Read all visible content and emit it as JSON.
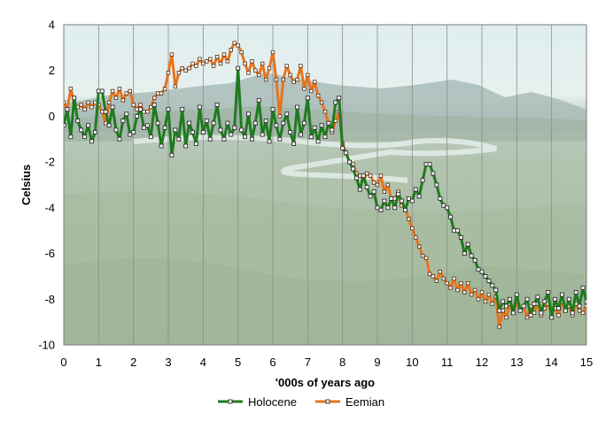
{
  "chart_data": {
    "type": "line",
    "title": "",
    "xlabel": "'000s of years ago",
    "ylabel": "Celsius",
    "xlim": [
      0,
      15
    ],
    "ylim": [
      -10,
      4
    ],
    "xticks": [
      "0",
      "1",
      "2",
      "3",
      "4",
      "5",
      "6",
      "7",
      "8",
      "9",
      "10",
      "11",
      "12",
      "13",
      "14",
      "15"
    ],
    "yticks": [
      "4",
      "2",
      "0",
      "-2",
      "-4",
      "-6",
      "-8",
      "-10"
    ],
    "grid": "vertical",
    "legend": "bottom",
    "background": "photograph of a forested landscape with a winding river and mountains",
    "series": [
      {
        "name": "Holocene",
        "color": "#1f7a1f",
        "x": [
          0,
          0.1,
          0.2,
          0.3,
          0.4,
          0.5,
          0.6,
          0.7,
          0.8,
          0.9,
          1.0,
          1.1,
          1.2,
          1.3,
          1.4,
          1.5,
          1.6,
          1.7,
          1.8,
          1.9,
          2.0,
          2.1,
          2.2,
          2.3,
          2.4,
          2.5,
          2.6,
          2.7,
          2.8,
          2.9,
          3.0,
          3.1,
          3.2,
          3.3,
          3.4,
          3.5,
          3.6,
          3.7,
          3.8,
          3.9,
          4.0,
          4.1,
          4.2,
          4.3,
          4.4,
          4.5,
          4.6,
          4.7,
          4.8,
          4.9,
          5.0,
          5.1,
          5.2,
          5.3,
          5.4,
          5.5,
          5.6,
          5.7,
          5.8,
          5.9,
          6.0,
          6.1,
          6.2,
          6.3,
          6.4,
          6.5,
          6.6,
          6.7,
          6.8,
          6.9,
          7.0,
          7.1,
          7.2,
          7.3,
          7.4,
          7.5,
          7.6,
          7.7,
          7.8,
          7.9,
          8.0,
          8.1,
          8.2,
          8.3,
          8.4,
          8.5,
          8.6,
          8.7,
          8.8,
          8.9,
          9.0,
          9.1,
          9.2,
          9.3,
          9.4,
          9.5,
          9.6,
          9.7,
          9.8,
          9.9,
          10.0,
          10.1,
          10.2,
          10.3,
          10.4,
          10.5,
          10.6,
          10.7,
          10.8,
          10.9,
          11.0,
          11.1,
          11.2,
          11.3,
          11.4,
          11.5,
          11.6,
          11.7,
          11.8,
          11.9,
          12.0,
          12.1,
          12.2,
          12.3,
          12.4,
          12.5,
          12.6,
          12.7,
          12.8,
          12.9,
          13.0,
          13.1,
          13.2,
          13.3,
          13.4,
          13.5,
          13.6,
          13.7,
          13.8,
          13.9,
          14.0,
          14.1,
          14.2,
          14.3,
          14.4,
          14.5,
          14.6,
          14.7,
          14.8,
          14.9,
          15.0
        ],
        "y": [
          -0.4,
          0.3,
          -0.9,
          0.8,
          -0.2,
          -0.6,
          -0.9,
          -0.4,
          -1.1,
          -0.7,
          1.1,
          1.1,
          0.2,
          -0.4,
          0.4,
          -0.6,
          -1.0,
          -0.2,
          0.1,
          -0.8,
          -0.7,
          0.0,
          0.3,
          -0.5,
          -0.4,
          -0.9,
          0.5,
          -0.3,
          -1.3,
          -0.5,
          0.3,
          -1.7,
          -0.6,
          -1.0,
          0.3,
          -1.3,
          -0.3,
          -0.7,
          -1.2,
          0.4,
          -0.7,
          -0.2,
          -1.0,
          -0.3,
          0.5,
          -0.6,
          -1.0,
          -0.3,
          -0.8,
          -0.5,
          2.1,
          -0.6,
          -0.9,
          0.1,
          -1.0,
          -0.3,
          0.7,
          -0.8,
          -0.2,
          -1.1,
          0.3,
          -0.4,
          -1.0,
          -0.3,
          0.1,
          -0.7,
          -1.2,
          0.4,
          -0.8,
          -0.3,
          0.8,
          -0.9,
          -0.5,
          -1.1,
          -0.4,
          -0.9,
          -0.3,
          -0.6,
          0.6,
          0.8,
          -1.4,
          -1.6,
          -2.0,
          -2.3,
          -2.7,
          -3.2,
          -2.6,
          -3.1,
          -3.5,
          -3.3,
          -4.0,
          -4.1,
          -3.7,
          -4.0,
          -3.6,
          -4.0,
          -3.4,
          -3.7,
          -4.1,
          -3.6,
          -3.7,
          -3.2,
          -3.5,
          -2.8,
          -2.1,
          -2.1,
          -2.5,
          -3.0,
          -3.6,
          -3.9,
          -4.0,
          -4.4,
          -5.0,
          -5.0,
          -5.3,
          -6.0,
          -5.6,
          -6.1,
          -6.3,
          -6.7,
          -6.8,
          -7.0,
          -7.2,
          -7.4,
          -7.6,
          -8.5,
          -8.1,
          -8.3,
          -8.0,
          -8.6,
          -7.8,
          -8.5,
          -8.3,
          -8.0,
          -8.7,
          -8.2,
          -7.9,
          -8.6,
          -8.1,
          -7.7,
          -8.8,
          -8.0,
          -8.4,
          -7.8,
          -8.5,
          -8.0,
          -8.6,
          -7.7,
          -8.3,
          -7.5,
          -8.1
        ],
        "marker": "square"
      },
      {
        "name": "Eemian",
        "color": "#e8731e",
        "x": [
          0,
          0.1,
          0.2,
          0.3,
          0.4,
          0.5,
          0.6,
          0.7,
          0.8,
          0.9,
          1.0,
          1.1,
          1.2,
          1.3,
          1.4,
          1.5,
          1.6,
          1.7,
          1.8,
          1.9,
          2.0,
          2.1,
          2.2,
          2.3,
          2.4,
          2.5,
          2.6,
          2.7,
          2.8,
          2.9,
          3.0,
          3.1,
          3.2,
          3.3,
          3.4,
          3.5,
          3.6,
          3.7,
          3.8,
          3.9,
          4.0,
          4.1,
          4.2,
          4.3,
          4.4,
          4.5,
          4.6,
          4.7,
          4.8,
          4.9,
          5.0,
          5.1,
          5.2,
          5.3,
          5.4,
          5.5,
          5.6,
          5.7,
          5.8,
          5.9,
          6.0,
          6.1,
          6.2,
          6.3,
          6.4,
          6.5,
          6.6,
          6.7,
          6.8,
          6.9,
          7.0,
          7.1,
          7.2,
          7.3,
          7.4,
          7.5,
          7.6,
          7.7,
          7.8,
          7.9,
          8.0,
          8.1,
          8.2,
          8.3,
          8.4,
          8.5,
          8.6,
          8.7,
          8.8,
          8.9,
          9.0,
          9.1,
          9.2,
          9.3,
          9.4,
          9.5,
          9.6,
          9.7,
          9.8,
          9.9,
          10.0,
          10.1,
          10.2,
          10.3,
          10.4,
          10.5,
          10.6,
          10.7,
          10.8,
          10.9,
          11.0,
          11.1,
          11.2,
          11.3,
          11.4,
          11.5,
          11.6,
          11.7,
          11.8,
          11.9,
          12.0,
          12.1,
          12.2,
          12.3,
          12.4,
          12.5,
          12.6,
          12.7,
          12.8,
          12.9,
          13.0,
          13.1,
          13.2,
          13.3,
          13.4,
          13.5,
          13.6,
          13.7,
          13.8,
          13.9,
          14.0,
          14.1,
          14.2,
          14.3,
          14.4,
          14.5,
          14.6,
          14.7,
          14.8,
          14.9,
          15.0
        ],
        "y": [
          0.6,
          0.3,
          1.2,
          0.6,
          0.4,
          0.5,
          0.3,
          0.6,
          0.4,
          0.6,
          0.5,
          0.2,
          -0.3,
          0.6,
          1.1,
          0.8,
          1.2,
          0.7,
          1.0,
          1.1,
          0.5,
          0.3,
          0.5,
          0.2,
          0.2,
          0.4,
          0.8,
          1.0,
          1.0,
          1.2,
          1.9,
          2.7,
          1.3,
          1.9,
          2.1,
          2.0,
          2.1,
          2.3,
          2.2,
          2.5,
          2.3,
          2.4,
          2.5,
          2.2,
          2.6,
          2.3,
          2.7,
          2.4,
          2.9,
          3.2,
          3.1,
          2.8,
          2.3,
          1.9,
          2.4,
          2.0,
          1.8,
          2.3,
          1.6,
          2.1,
          2.8,
          1.6,
          0.0,
          1.6,
          2.2,
          1.8,
          1.5,
          1.6,
          2.2,
          1.2,
          1.8,
          1.1,
          1.5,
          0.9,
          0.6,
          0.2,
          -0.3,
          -0.7,
          -0.2,
          0.2,
          -1.2,
          -1.6,
          -2.0,
          -2.1,
          -2.5,
          -2.6,
          -2.8,
          -2.5,
          -2.6,
          -2.9,
          -3.0,
          -2.6,
          -3.3,
          -3.0,
          -3.6,
          -3.6,
          -3.3,
          -3.9,
          -4.0,
          -4.5,
          -4.9,
          -5.3,
          -5.7,
          -6.1,
          -6.2,
          -6.9,
          -7.0,
          -7.2,
          -6.8,
          -7.1,
          -7.3,
          -7.5,
          -7.1,
          -7.6,
          -7.3,
          -7.7,
          -7.3,
          -7.8,
          -7.6,
          -8.0,
          -7.7,
          -8.1,
          -7.8,
          -8.2,
          -7.9,
          -9.2,
          -8.5,
          -8.8,
          -8.2,
          -8.6,
          -8.1,
          -8.5,
          -8.3,
          -8.8,
          -8.3,
          -8.6,
          -8.2,
          -8.7,
          -8.4,
          -8.2,
          -8.6,
          -8.4,
          -8.7,
          -8.1,
          -8.5,
          -8.3,
          -8.7,
          -8.2,
          -8.5,
          -8.6,
          -8.3
        ]
      }
    ]
  }
}
